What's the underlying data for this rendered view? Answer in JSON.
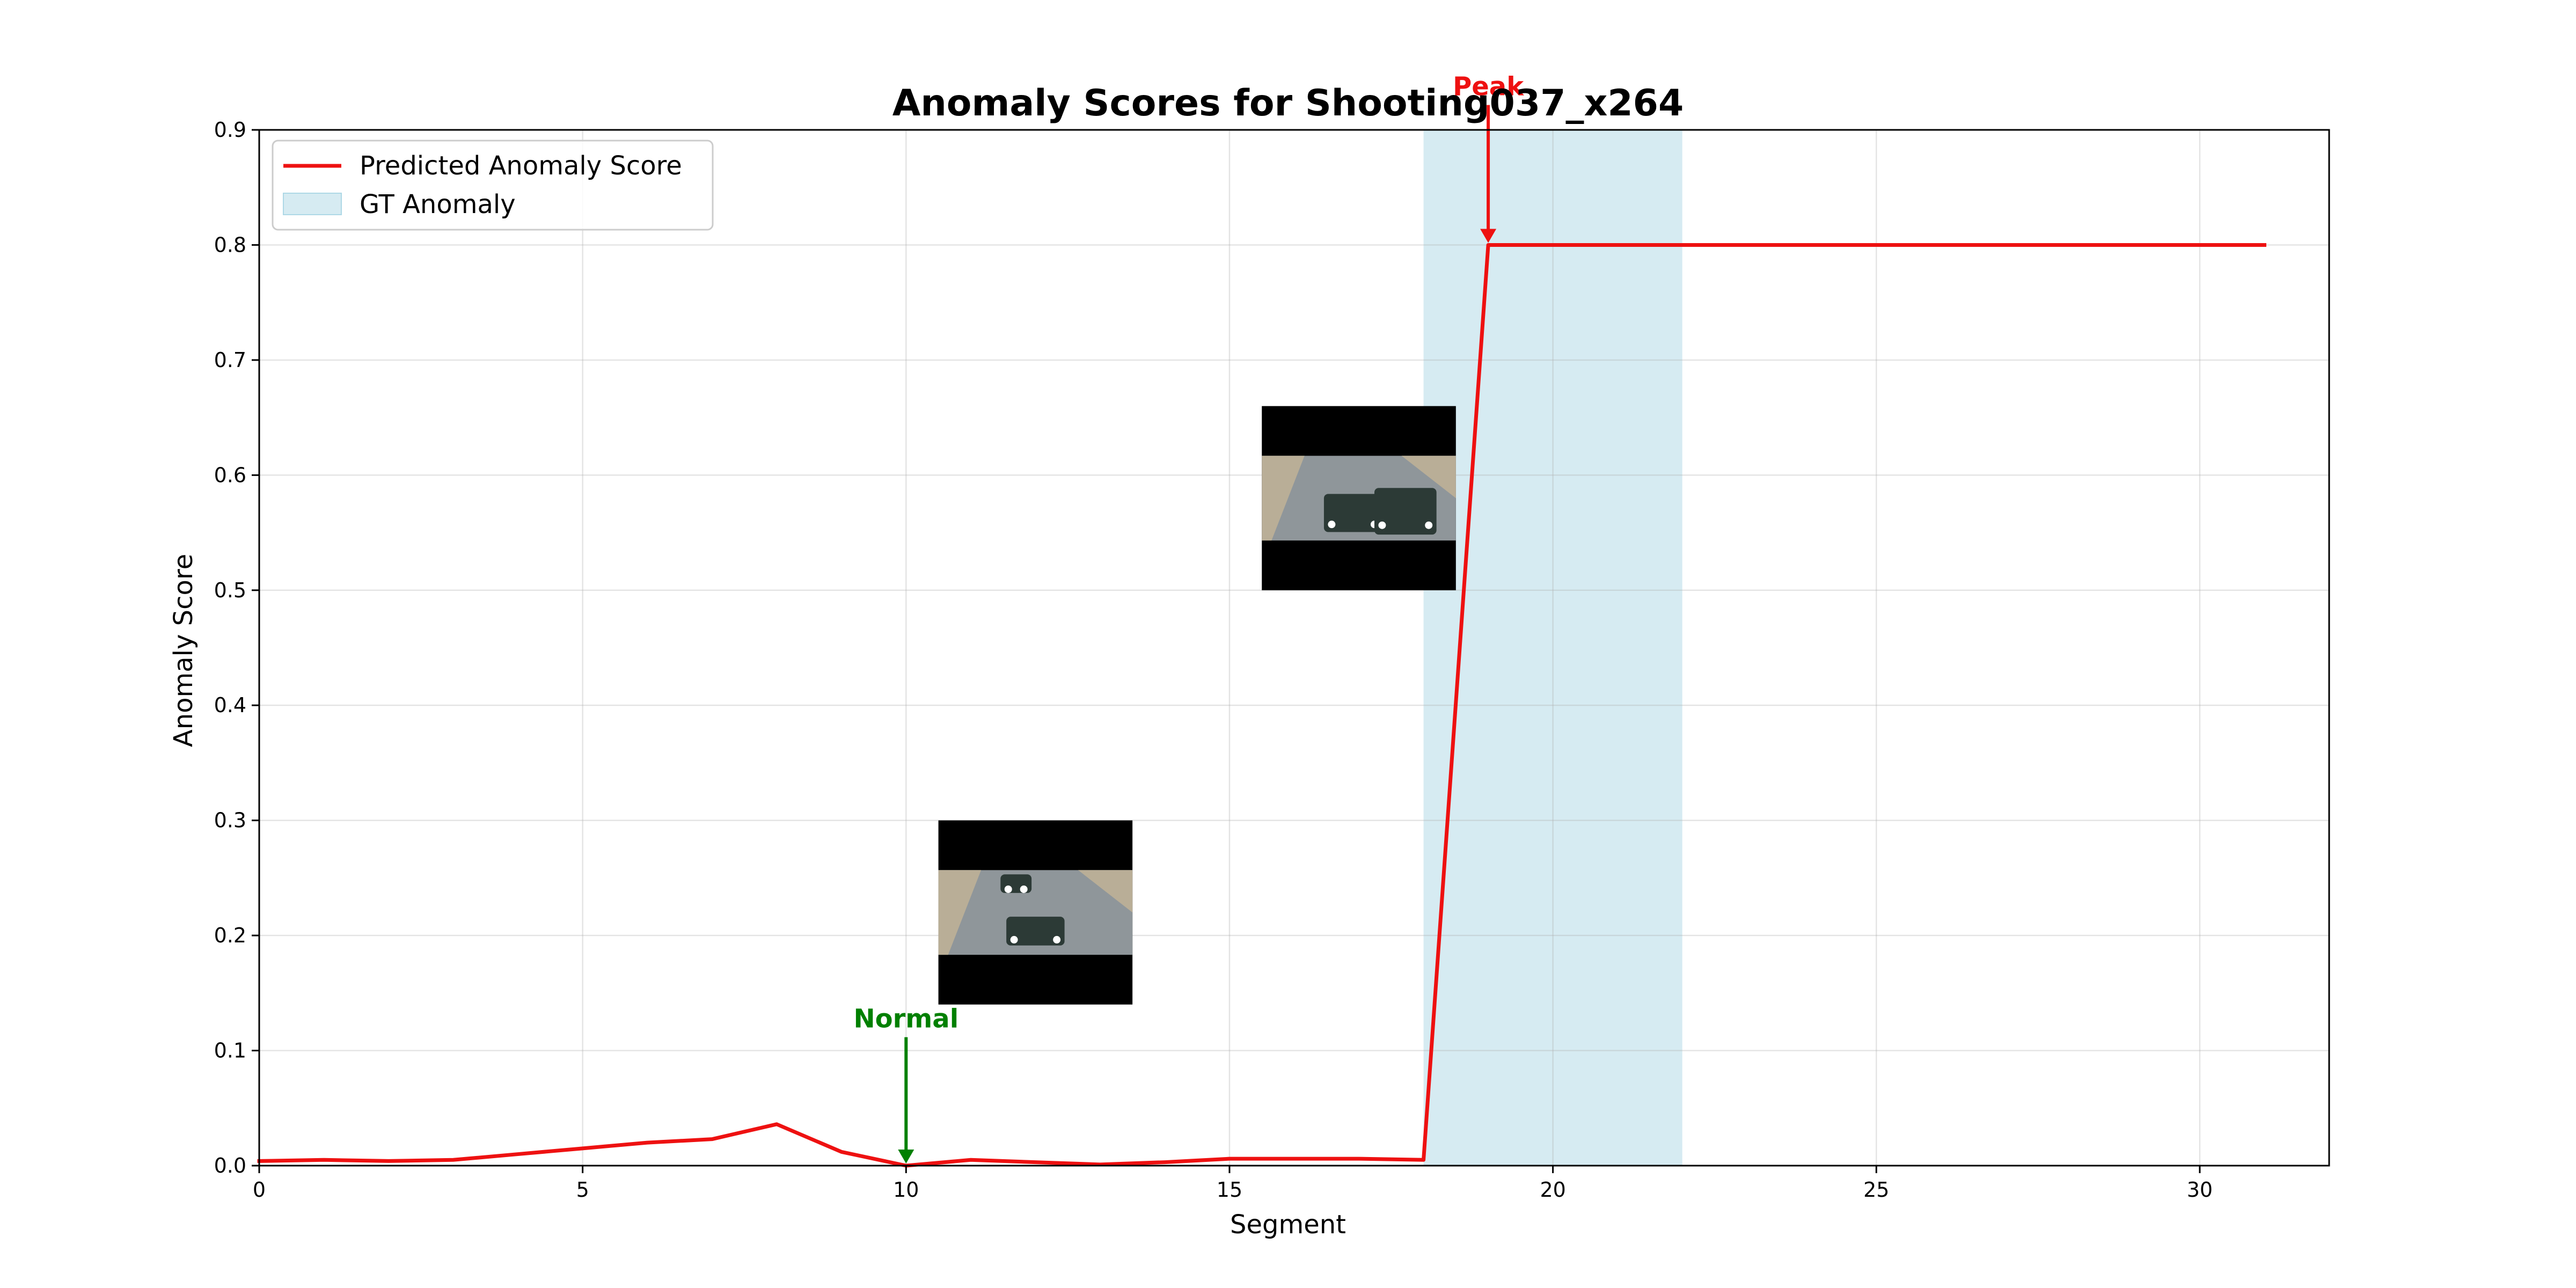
{
  "chart_data": {
    "type": "line",
    "title": "Anomaly Scores for Shooting037_x264",
    "xlabel": "Segment",
    "ylabel": "Anomaly Score",
    "xlim": [
      0,
      32
    ],
    "ylim": [
      0,
      0.9
    ],
    "xticks": [
      0,
      5,
      10,
      15,
      20,
      25,
      30
    ],
    "yticks": [
      0.0,
      0.1,
      0.2,
      0.3,
      0.4,
      0.5,
      0.6,
      0.7,
      0.8,
      0.9
    ],
    "grid": true,
    "legend_position": "top-left",
    "series": [
      {
        "name": "Predicted Anomaly Score",
        "color": "#ee1111",
        "x": [
          0,
          1,
          2,
          3,
          4,
          5,
          6,
          7,
          8,
          9,
          10,
          11,
          12,
          13,
          14,
          15,
          16,
          17,
          18,
          19,
          20,
          21,
          22,
          23,
          24,
          25,
          26,
          27,
          28,
          29,
          30,
          31
        ],
        "y": [
          0.004,
          0.005,
          0.004,
          0.005,
          0.01,
          0.015,
          0.02,
          0.023,
          0.036,
          0.012,
          0.0,
          0.005,
          0.003,
          0.001,
          0.003,
          0.006,
          0.006,
          0.006,
          0.005,
          0.8,
          0.8,
          0.8,
          0.8,
          0.8,
          0.8,
          0.8,
          0.8,
          0.8,
          0.8,
          0.8,
          0.8,
          0.8
        ]
      }
    ],
    "gt_anomaly": {
      "name": "GT Anomaly",
      "color": "#add8e6",
      "x_start": 18,
      "x_end": 22
    },
    "annotations": [
      {
        "label": "Normal",
        "color": "#008000",
        "x": 10,
        "y": 0.0,
        "text_y": 0.12
      },
      {
        "label": "Peak",
        "color": "#ee1111",
        "x": 19,
        "y": 0.8,
        "text_y": 0.93
      }
    ],
    "thumbnails": [
      {
        "description": "video frame",
        "x0": 10.5,
        "x1": 13.5,
        "y0": 0.14,
        "y1": 0.3
      },
      {
        "description": "video frame",
        "x0": 15.5,
        "x1": 18.5,
        "y0": 0.5,
        "y1": 0.66
      }
    ],
    "frame_colors": {
      "letterbox": "#000000",
      "road": "#8f969a",
      "sidewalk": "#b9ae97",
      "car": "#2c3a36",
      "headlight": "#ffffff"
    }
  }
}
